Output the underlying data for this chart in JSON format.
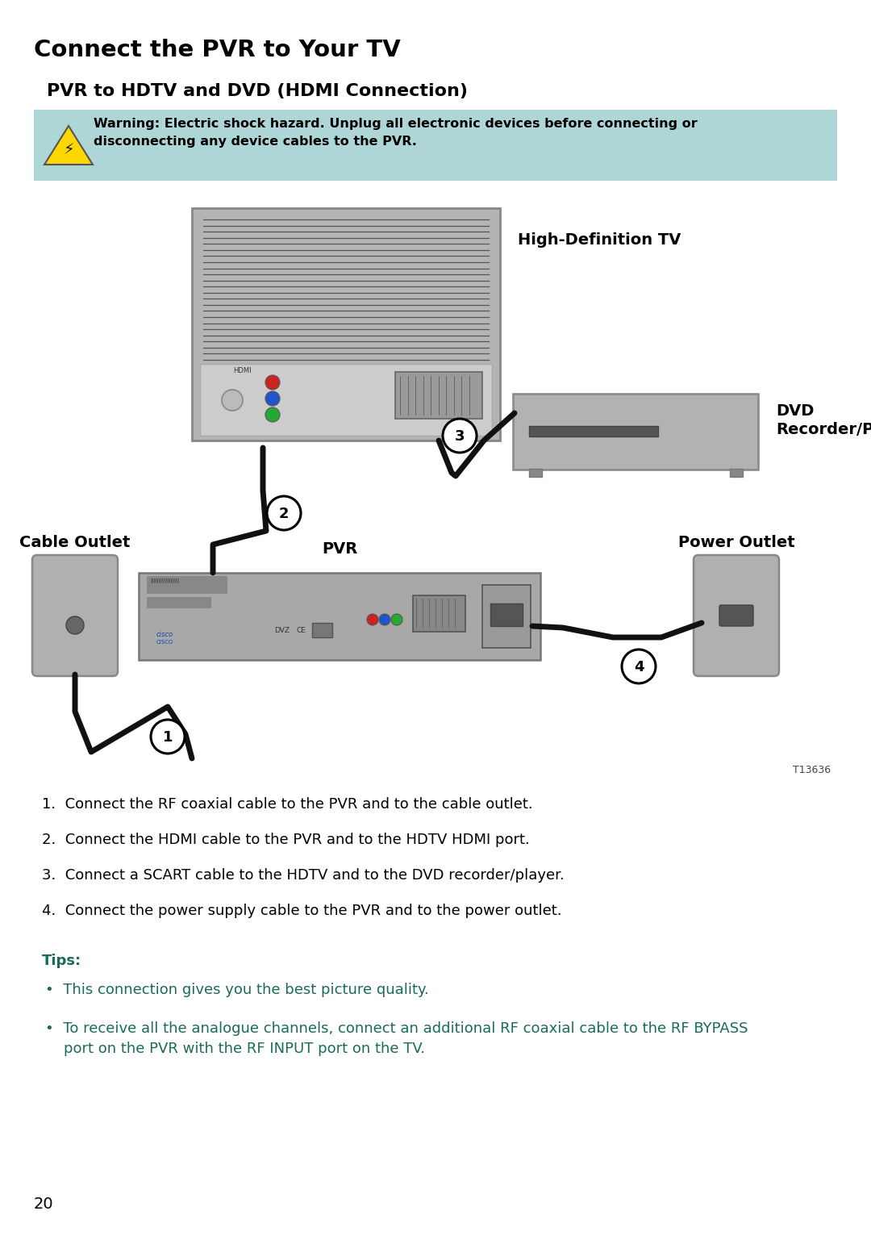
{
  "title": "Connect the PVR to Your TV",
  "subtitle": "PVR to HDTV and DVD (HDMI Connection)",
  "warning_text_bold": "Warning: Electric shock hazard. Unplug all electronic devices before connecting or\ndisconnecting any device cables to the PVR.",
  "warning_bg": "#aed6d6",
  "instructions": [
    "Connect the RF coaxial cable to the PVR and to the cable outlet.",
    "Connect the HDMI cable to the PVR and to the HDTV HDMI port.",
    "Connect a SCART cable to the HDTV and to the DVD recorder/player.",
    "Connect the power supply cable to the PVR and to the power outlet."
  ],
  "tips_label": "Tips:",
  "tip1": "This connection gives you the best picture quality.",
  "tip2_line1": "To receive all the analogue channels, connect an additional RF coaxial cable to the RF BYPASS",
  "tip2_line2": "port on the PVR with the RF INPUT port on the TV.",
  "tips_color": "#1a6b5a",
  "label_hd_tv": "High-Definition TV",
  "label_dvd_line1": "DVD",
  "label_dvd_line2": "Recorder/Player",
  "label_cable": "Cable Outlet",
  "label_pvr": "PVR",
  "label_power": "Power Outlet",
  "figure_id": "T13636",
  "page_number": "20",
  "bg_color": "#ffffff",
  "text_color": "#000000",
  "cable_color": "#111111",
  "title_fontsize": 21,
  "subtitle_fontsize": 16,
  "label_fontsize": 14,
  "inst_fontsize": 13,
  "tips_fontsize": 13
}
